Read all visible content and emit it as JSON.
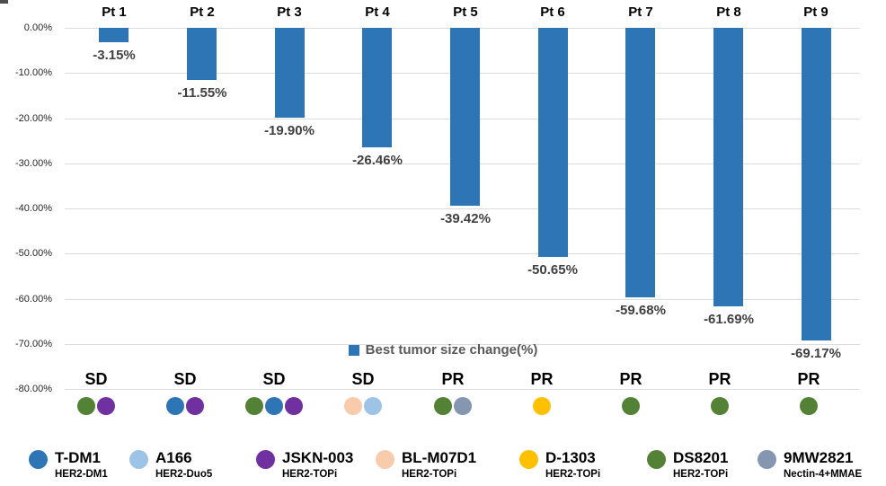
{
  "chart_data": {
    "type": "bar",
    "title": "",
    "series_label": "Best tumor size change(%)",
    "categories": [
      "Pt 1",
      "Pt 2",
      "Pt 3",
      "Pt 4",
      "Pt 5",
      "Pt 6",
      "Pt 7",
      "Pt 8",
      "Pt 9"
    ],
    "values": [
      -3.15,
      -11.55,
      -19.9,
      -26.46,
      -39.42,
      -50.65,
      -59.68,
      -61.69,
      -69.17
    ],
    "value_labels": [
      "-3.15%",
      "-11.55%",
      "-19.90%",
      "-26.46%",
      "-39.42%",
      "-50.65%",
      "-59.68%",
      "-61.69%",
      "-69.17%"
    ],
    "responses": [
      "SD",
      "SD",
      "SD",
      "SD",
      "PR",
      "PR",
      "PR",
      "PR",
      "PR"
    ],
    "prior_treatments": [
      [
        "DS8201",
        "JSKN-003"
      ],
      [
        "T-DM1",
        "JSKN-003"
      ],
      [
        "DS8201",
        "T-DM1",
        "JSKN-003"
      ],
      [
        "BL-M07D1",
        "A166"
      ],
      [
        "DS8201",
        "9MW2821"
      ],
      [
        "D-1303"
      ],
      [
        "DS8201"
      ],
      [
        "DS8201"
      ],
      [
        "DS8201"
      ]
    ],
    "y_ticks": [
      "0.00%",
      "-10.00%",
      "-20.00%",
      "-30.00%",
      "-40.00%",
      "-50.00%",
      "-60.00%",
      "-70.00%",
      "-80.00%"
    ],
    "ylim": [
      -80,
      0
    ],
    "xlabel": "",
    "ylabel": "",
    "grid": true,
    "bar_color": "#2e75b6",
    "legend_position": "bottom-center"
  },
  "drug_legend": [
    {
      "name": "T-DM1",
      "target": "HER2-DM1",
      "color": "#2e75b6"
    },
    {
      "name": "A166",
      "target": "HER2-Duo5",
      "color": "#9dc3e6"
    },
    {
      "name": "JSKN-003",
      "target": "HER2-TOPi",
      "color": "#7030a0"
    },
    {
      "name": "BL-M07D1",
      "target": "HER2-TOPi",
      "color": "#f8cbad"
    },
    {
      "name": "D-1303",
      "target": "HER2-TOPi",
      "color": "#ffc000"
    },
    {
      "name": "DS8201",
      "target": "HER2-TOPi",
      "color": "#538135"
    },
    {
      "name": "9MW2821",
      "target": "Nectin-4+MMAE",
      "color": "#8496b0"
    }
  ]
}
